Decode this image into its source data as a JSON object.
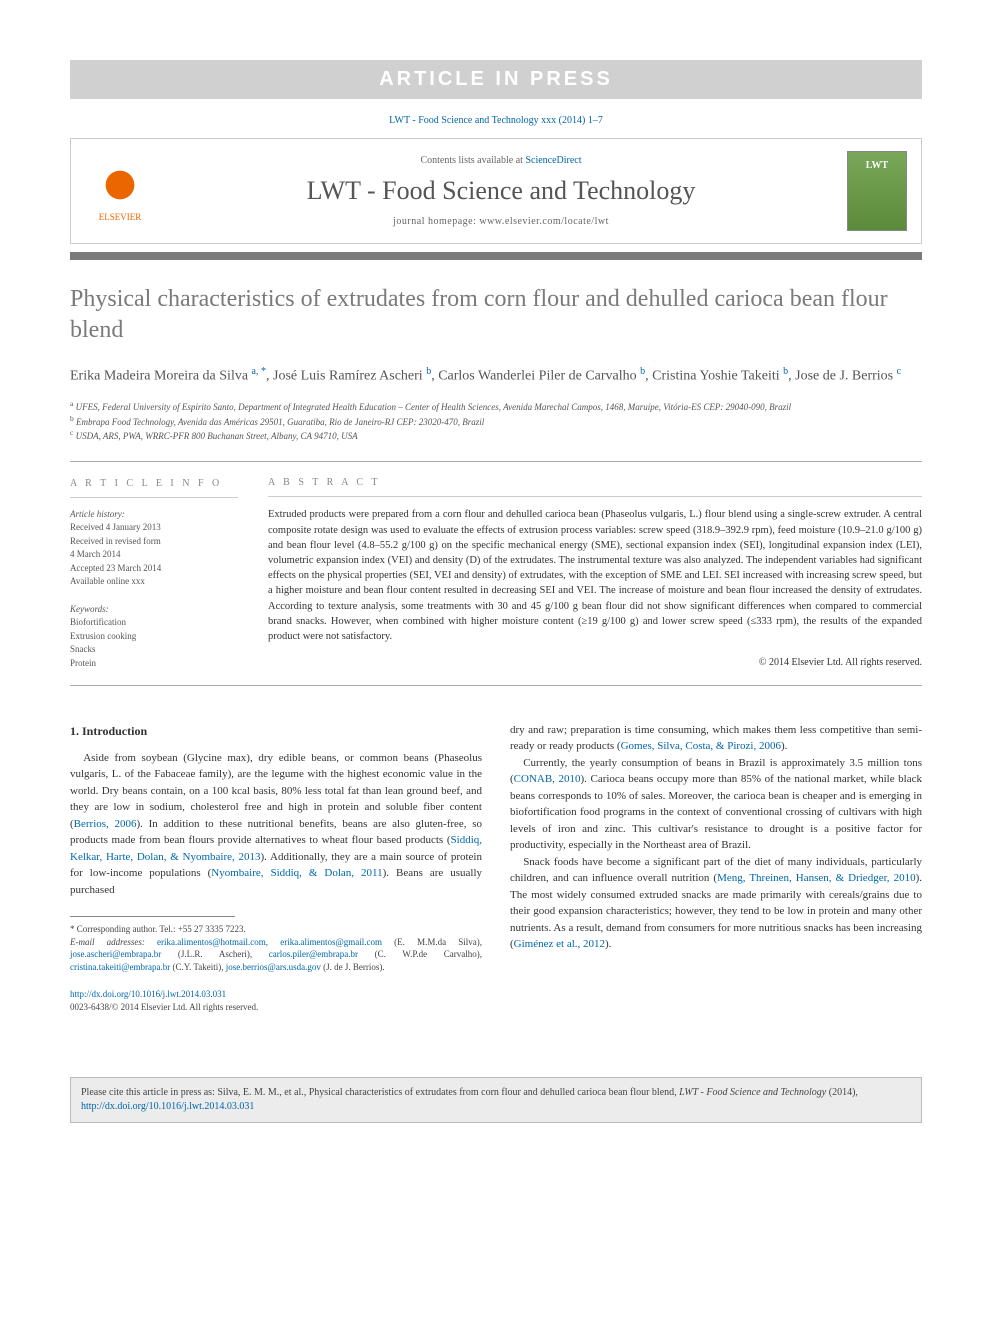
{
  "banner": "ARTICLE IN PRESS",
  "journal_ref": "LWT - Food Science and Technology xxx (2014) 1–7",
  "header": {
    "publisher": "ELSEVIER",
    "contents_prefix": "Contents lists available at ",
    "contents_link": "ScienceDirect",
    "journal_title": "LWT - Food Science and Technology",
    "homepage_prefix": "journal homepage: ",
    "homepage_url": "www.elsevier.com/locate/lwt",
    "cover_text": "LWT"
  },
  "title": "Physical characteristics of extrudates from corn flour and dehulled carioca bean flour blend",
  "authors_html": "Erika Madeira Moreira da Silva <sup>a, *</sup>, José Luis Ramírez Ascheri <sup>b</sup>, Carlos Wanderlei Piler de Carvalho <sup>b</sup>, Cristina Yoshie Takeiti <sup>b</sup>, Jose de J. Berrios <sup>c</sup>",
  "affiliations": [
    "a UFES, Federal University of Espirito Santo, Department of Integrated Health Education – Center of Health Sciences, Avenida Marechal Campos, 1468, Maruípe, Vitória-ES CEP: 29040-090, Brazil",
    "b Embrapa Food Technology, Avenida das Américas 29501, Guaratiba, Rio de Janeiro-RJ CEP: 23020-470, Brazil",
    "c USDA, ARS, PWA, WRRC-PFR 800 Buchanan Street, Albany, CA 94710, USA"
  ],
  "article_info": {
    "heading": "A R T I C L E   I N F O",
    "history_label": "Article history:",
    "history": [
      "Received 4 January 2013",
      "Received in revised form",
      "4 March 2014",
      "Accepted 23 March 2014",
      "Available online xxx"
    ],
    "keywords_label": "Keywords:",
    "keywords": [
      "Biofortification",
      "Extrusion cooking",
      "Snacks",
      "Protein"
    ]
  },
  "abstract": {
    "heading": "A B S T R A C T",
    "text": "Extruded products were prepared from a corn flour and dehulled carioca bean (Phaseolus vulgaris, L.) flour blend using a single-screw extruder. A central composite rotate design was used to evaluate the effects of extrusion process variables: screw speed (318.9–392.9 rpm), feed moisture (10.9–21.0 g/100 g) and bean flour level (4.8–55.2 g/100 g) on the specific mechanical energy (SME), sectional expansion index (SEI), longitudinal expansion index (LEI), volumetric expansion index (VEI) and density (D) of the extrudates. The instrumental texture was also analyzed. The independent variables had significant effects on the physical properties (SEI, VEI and density) of extrudates, with the exception of SME and LEI. SEI increased with increasing screw speed, but a higher moisture and bean flour content resulted in decreasing SEI and VEI. The increase of moisture and bean flour increased the density of extrudates. According to texture analysis, some treatments with 30 and 45 g/100 g bean flour did not show significant differences when compared to commercial brand snacks. However, when combined with higher moisture content (≥19 g/100 g) and lower screw speed (≤333 rpm), the results of the expanded product were not satisfactory.",
    "copyright": "© 2014 Elsevier Ltd. All rights reserved."
  },
  "section1": {
    "heading": "1.  Introduction",
    "p1_a": "Aside from soybean (Glycine max), dry edible beans, or common beans (Phaseolus vulgaris, L. of the Fabaceae family), are the legume with the highest economic value in the world. Dry beans contain, on a 100 kcal basis, 80% less total fat than lean ground beef, and they are low in sodium, cholesterol free and high in protein and soluble fiber content (",
    "p1_ref1": "Berrios, 2006",
    "p1_b": "). In addition to these nutritional benefits, beans are also gluten-free, so products made from bean flours provide alternatives to wheat flour based products (",
    "p1_ref2": "Siddiq, Kelkar, Harte, Dolan, & Nyombaire, 2013",
    "p1_c": "). Additionally, they are a main source of protein for low-income populations (",
    "p1_ref3": "Nyombaire, Siddiq, & Dolan, 2011",
    "p1_d": "). Beans are usually purchased",
    "p2_a": "dry and raw; preparation is time consuming, which makes them less competitive than semi-ready or ready products (",
    "p2_ref1": "Gomes, Silva, Costa, & Pirozi, 2006",
    "p2_b": ").",
    "p3_a": "Currently, the yearly consumption of beans in Brazil is approximately 3.5 million tons (",
    "p3_ref1": "CONAB, 2010",
    "p3_b": "). Carioca beans occupy more than 85% of the national market, while black beans corresponds to 10% of sales. Moreover, the carioca bean is cheaper and is emerging in biofortification food programs in the context of conventional crossing of cultivars with high levels of iron and zinc. This cultivar's resistance to drought is a positive factor for productivity, especially in the Northeast area of Brazil.",
    "p4_a": "Snack foods have become a significant part of the diet of many individuals, particularly children, and can influence overall nutrition (",
    "p4_ref1": "Meng, Threinen, Hansen, & Driedger, 2010",
    "p4_b": "). The most widely consumed extruded snacks are made primarily with cereals/grains due to their good expansion characteristics; however, they tend to be low in protein and many other nutrients. As a result, demand from consumers for more nutritious snacks has been increasing (",
    "p4_ref2": "Giménez et al., 2012",
    "p4_c": ")."
  },
  "footnotes": {
    "corr": "* Corresponding author. Tel.: +55 27 3335 7223.",
    "email_label": "E-mail addresses: ",
    "emails": "erika.alimentos@hotmail.com, erika.alimentos@gmail.com (E. M.M.da Silva), jose.ascheri@embrapa.br (J.L.R. Ascheri), carlos.piler@embrapa.br (C. W.P.de Carvalho), cristina.takeiti@embrapa.br (C.Y. Takeiti), jose.berrios@ars.usda.gov (J. de J. Berrios)."
  },
  "doi": {
    "url": "http://dx.doi.org/10.1016/j.lwt.2014.03.031",
    "issn": "0023-6438/© 2014 Elsevier Ltd. All rights reserved."
  },
  "cite_box": {
    "text_a": "Please cite this article in press as: Silva, E. M. M., et al., Physical characteristics of extrudates from corn flour and dehulled carioca bean flour blend, ",
    "text_i": "LWT - Food Science and Technology",
    "text_b": " (2014), ",
    "link": "http://dx.doi.org/10.1016/j.lwt.2014.03.031"
  },
  "colors": {
    "banner_bg": "#d0d0d0",
    "banner_fg": "#ffffff",
    "link": "#0066aa",
    "rule": "#7a7a7a",
    "title_gray": "#7a7a7a",
    "orange": "#ec6600",
    "cover_green": "#7aa85a"
  },
  "typography": {
    "body_font": "Georgia, serif",
    "title_pt": 24,
    "journal_title_pt": 26,
    "abstract_pt": 10.5,
    "info_pt": 9,
    "body_pt": 11
  }
}
